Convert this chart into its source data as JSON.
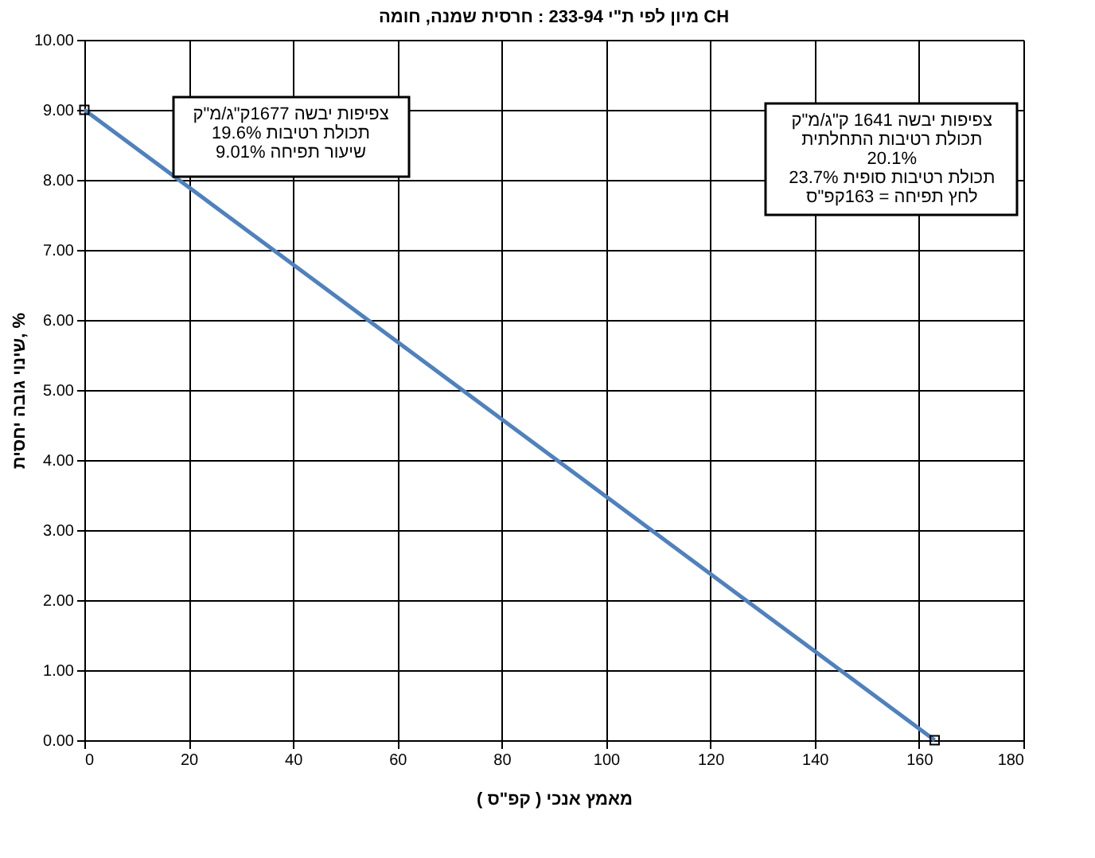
{
  "chart_data": {
    "type": "line",
    "title": "מיון לפי ת\"י 233-94 : חרסית שמנה, חומה CH",
    "xlabel": "מאמץ אנכי ( קפ\"ס )",
    "ylabel": "שינוי גובה יחסית, %",
    "x": [
      0,
      163
    ],
    "series": [
      {
        "color": "#4f81bd",
        "values": [
          9.0,
          0.0
        ]
      }
    ],
    "xlim": [
      0,
      180
    ],
    "xticks": [
      0,
      20,
      40,
      60,
      80,
      100,
      120,
      140,
      160,
      180
    ],
    "ylim": [
      0,
      10
    ],
    "yticks": [
      {
        "value": 0,
        "label": "0.00"
      },
      {
        "value": 1,
        "label": "1.00"
      },
      {
        "value": 2,
        "label": "2.00"
      },
      {
        "value": 3,
        "label": "3.00"
      },
      {
        "value": 4,
        "label": "4.00"
      },
      {
        "value": 5,
        "label": "5.00"
      },
      {
        "value": 6,
        "label": "6.00"
      },
      {
        "value": 7,
        "label": "7.00"
      },
      {
        "value": 8,
        "label": "8.00"
      },
      {
        "value": 9,
        "label": "9.00"
      },
      {
        "value": 10,
        "label": "10.00"
      }
    ],
    "grid": true,
    "marker": "square",
    "line_style": "solid",
    "annotations": [
      "צפיפות יבשה 1677ק\"ג/מ\"ק\nתכולת רטיבות 19.6%\nשיעור תפיחה 9.01%",
      "צפיפות יבשה 1641 ק\"ג/מ\"ק\nתכולת רטיבות התחלתית\n20.1%\nתכולת רטיבות סופית 23.7%\nלחץ תפיחה = 163קפ\"ס"
    ]
  }
}
